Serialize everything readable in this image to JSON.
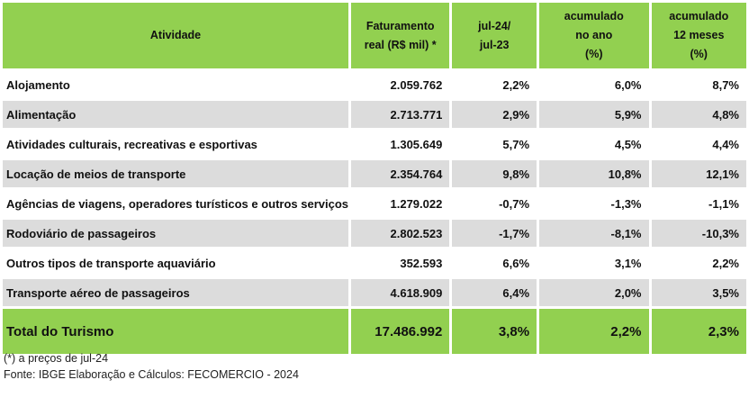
{
  "table": {
    "headers": [
      [
        "Atividade"
      ],
      [
        "Faturamento",
        "real (R$ mil) *"
      ],
      [
        "jul-24/",
        "jul-23"
      ],
      [
        "acumulado",
        "no ano",
        "(%)"
      ],
      [
        "acumulado",
        "12 meses",
        "(%)"
      ]
    ],
    "rows": [
      {
        "atividade": "Alojamento",
        "faturamento": "2.059.762",
        "jul": "2,2%",
        "ano": "6,0%",
        "meses": "8,7%"
      },
      {
        "atividade": "Alimentação",
        "faturamento": "2.713.771",
        "jul": "2,9%",
        "ano": "5,9%",
        "meses": "4,8%"
      },
      {
        "atividade": "Atividades culturais, recreativas e esportivas",
        "faturamento": "1.305.649",
        "jul": "5,7%",
        "ano": "4,5%",
        "meses": "4,4%"
      },
      {
        "atividade": "Locação de meios de transporte",
        "faturamento": "2.354.764",
        "jul": "9,8%",
        "ano": "10,8%",
        "meses": "12,1%"
      },
      {
        "atividade": " Agências de viagens, operadores turísticos e  outros serviços",
        "faturamento": "1.279.022",
        "jul": "-0,7%",
        "ano": "-1,3%",
        "meses": "-1,1%"
      },
      {
        "atividade": "Rodoviário de passageiros",
        "faturamento": "2.802.523",
        "jul": "-1,7%",
        "ano": "-8,1%",
        "meses": "-10,3%"
      },
      {
        "atividade": "Outros tipos de transporte aquaviário",
        "faturamento": "352.593",
        "jul": "6,6%",
        "ano": "3,1%",
        "meses": "2,2%"
      },
      {
        "atividade": "Transporte aéreo de passageiros",
        "faturamento": "4.618.909",
        "jul": "6,4%",
        "ano": "2,0%",
        "meses": "3,5%"
      }
    ],
    "total": {
      "atividade": "Total do Turismo",
      "faturamento": "17.486.992",
      "jul": "3,8%",
      "ano": "2,2%",
      "meses": "2,3%"
    }
  },
  "notes": {
    "footnote": "(*) a preços de jul-24",
    "source": "Fonte: IBGE Elaboração e Cálculos: FECOMERCIO - 2024"
  },
  "colors": {
    "header_bg": "#92d050",
    "stripe_bg": "#dcdcdc"
  }
}
